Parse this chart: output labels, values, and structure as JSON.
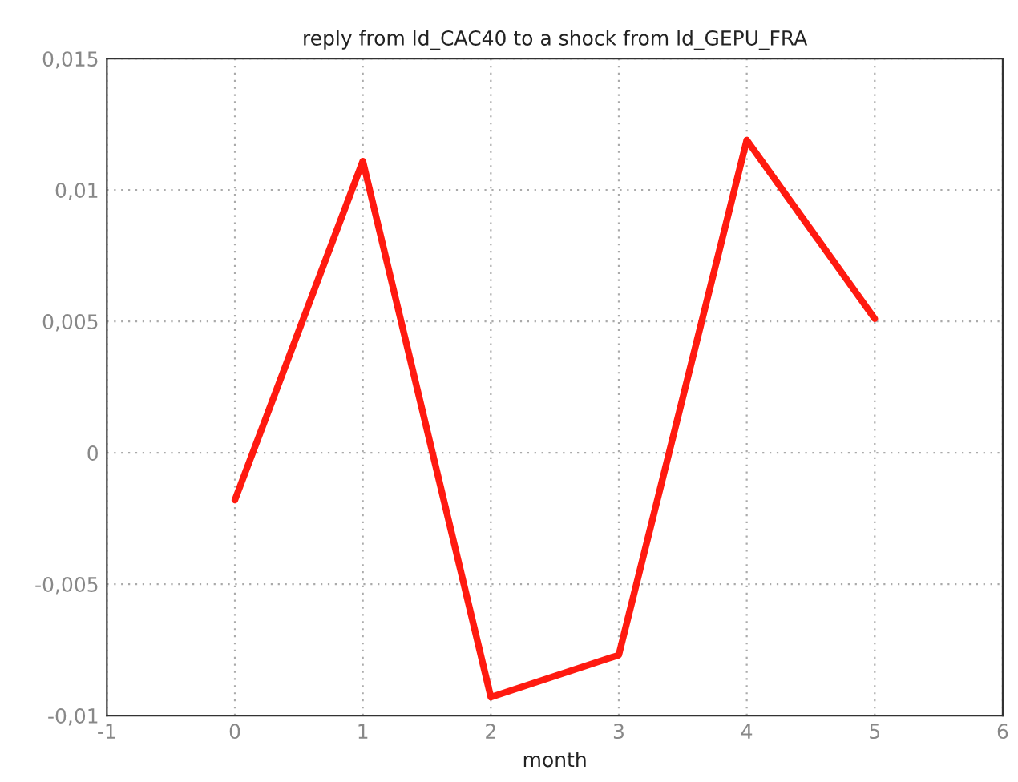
{
  "chart_data": {
    "type": "line",
    "title": "reply from ld_CAC40 to a shock from ld_GEPU_FRA",
    "xlabel": "month",
    "x": [
      0,
      1,
      2,
      3,
      4,
      5
    ],
    "series": [
      {
        "color": "#ff1a10",
        "values": [
          -0.0018,
          0.0111,
          -0.0093,
          -0.0077,
          0.0119,
          0.0051
        ]
      }
    ],
    "xlim": [
      -1,
      6
    ],
    "xticks": [
      -1,
      0,
      1,
      2,
      3,
      4,
      5,
      6
    ],
    "ylim": [
      -0.01,
      0.015
    ],
    "yticks": [
      {
        "value": -0.01,
        "label": "-0,01"
      },
      {
        "value": -0.005,
        "label": "-0,005"
      },
      {
        "value": 0,
        "label": "0"
      },
      {
        "value": 0.005,
        "label": "0,005"
      },
      {
        "value": 0.01,
        "label": "0,01"
      },
      {
        "value": 0.015,
        "label": "0,015"
      }
    ],
    "grid": true,
    "marker": "none",
    "line_style": "solid"
  }
}
